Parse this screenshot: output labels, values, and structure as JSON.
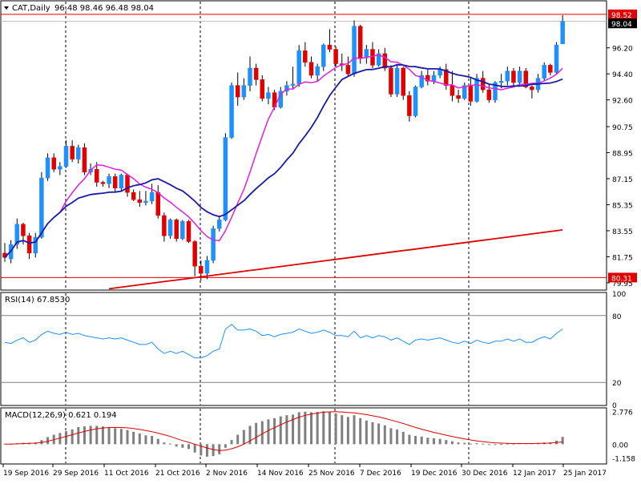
{
  "window": {
    "title": "CAT,Daily",
    "ohlc_text": "96.48 98.46 96.48 98.04"
  },
  "colors": {
    "up": "#1e90ff",
    "down": "#e00000",
    "ma_fast": "#e020e0",
    "ma_mid": "#1a1aa8",
    "ma_slow": "#e00000",
    "level_line": "#e00000",
    "grid": "#000000",
    "rsi_line": "#1e90ff",
    "macd_hist": "#7f7f7f",
    "macd_signal": "#e00000"
  },
  "chart_data": [
    {
      "type": "candlestick",
      "title": "CAT,Daily",
      "ylim": [
        79.5,
        99.4
      ],
      "y_ticks": [
        "98.52",
        "98.04",
        "96.20",
        "94.40",
        "92.60",
        "90.75",
        "88.95",
        "87.15",
        "85.35",
        "83.55",
        "81.75",
        "79.95"
      ],
      "highlight_labels": {
        "current": "98.04",
        "high_level": "98.52",
        "low_level": "80.31"
      },
      "levels": [
        98.52,
        80.31
      ],
      "x_labels": [
        "19 Sep 2016",
        "29 Sep 2016",
        "11 Oct 2016",
        "21 Oct 2016",
        "2 Nov 2016",
        "14 Nov 2016",
        "25 Nov 2016",
        "7 Dec 2016",
        "19 Dec 2016",
        "30 Dec 2016",
        "12 Jan 2017",
        "25 Jan 2017"
      ],
      "candles": [
        [
          82.0,
          82.7,
          81.4,
          81.7
        ],
        [
          81.6,
          82.9,
          81.3,
          82.6
        ],
        [
          82.6,
          84.4,
          82.3,
          84.0
        ],
        [
          84.0,
          84.1,
          82.6,
          83.2
        ],
        [
          83.2,
          83.4,
          81.6,
          82.0
        ],
        [
          82.0,
          83.4,
          81.7,
          83.1
        ],
        [
          83.1,
          87.6,
          83.0,
          87.2
        ],
        [
          87.2,
          88.9,
          87.0,
          88.6
        ],
        [
          88.6,
          88.9,
          87.6,
          87.8
        ],
        [
          87.8,
          88.3,
          87.4,
          88.0
        ],
        [
          88.0,
          89.8,
          87.9,
          89.4
        ],
        [
          89.4,
          89.8,
          88.3,
          88.5
        ],
        [
          88.5,
          89.5,
          88.2,
          89.3
        ],
        [
          89.3,
          89.6,
          87.4,
          87.6
        ],
        [
          87.6,
          88.2,
          87.4,
          87.8
        ],
        [
          87.8,
          88.3,
          86.6,
          86.9
        ],
        [
          86.9,
          87.0,
          86.6,
          86.8
        ],
        [
          86.8,
          87.5,
          86.5,
          87.3
        ],
        [
          87.3,
          87.5,
          86.2,
          86.5
        ],
        [
          86.5,
          87.5,
          86.3,
          87.4
        ],
        [
          87.4,
          87.5,
          85.9,
          86.2
        ],
        [
          86.2,
          86.4,
          85.6,
          85.7
        ],
        [
          85.7,
          86.3,
          85.2,
          85.5
        ],
        [
          85.5,
          86.3,
          85.3,
          85.6
        ],
        [
          85.6,
          86.8,
          85.4,
          86.2
        ],
        [
          86.2,
          86.7,
          84.4,
          84.6
        ],
        [
          84.6,
          84.8,
          82.8,
          83.2
        ],
        [
          83.2,
          84.4,
          83.0,
          84.3
        ],
        [
          84.3,
          84.4,
          82.8,
          83.0
        ],
        [
          83.0,
          84.3,
          82.9,
          84.2
        ],
        [
          84.2,
          84.3,
          82.7,
          82.8
        ],
        [
          82.8,
          82.9,
          80.4,
          81.1
        ],
        [
          81.1,
          81.5,
          80.1,
          80.6
        ],
        [
          80.6,
          81.8,
          80.2,
          81.5
        ],
        [
          81.5,
          83.9,
          81.3,
          83.7
        ],
        [
          83.7,
          84.6,
          83.5,
          84.3
        ],
        [
          84.3,
          90.3,
          84.2,
          90.0
        ],
        [
          90.0,
          93.8,
          89.9,
          93.6
        ],
        [
          93.6,
          94.5,
          92.2,
          92.8
        ],
        [
          92.8,
          94.1,
          92.6,
          93.6
        ],
        [
          93.6,
          95.6,
          93.2,
          94.8
        ],
        [
          94.8,
          95.1,
          93.6,
          94.0
        ],
        [
          94.0,
          94.3,
          92.5,
          92.7
        ],
        [
          92.7,
          93.5,
          92.3,
          93.1
        ],
        [
          93.1,
          93.3,
          91.9,
          92.1
        ],
        [
          92.1,
          93.5,
          92.0,
          93.2
        ],
        [
          93.2,
          93.9,
          92.9,
          93.6
        ],
        [
          93.6,
          94.9,
          93.3,
          93.7
        ],
        [
          93.7,
          96.4,
          93.5,
          96.0
        ],
        [
          96.0,
          96.6,
          94.9,
          95.2
        ],
        [
          95.2,
          95.6,
          94.1,
          94.3
        ],
        [
          94.3,
          95.1,
          93.9,
          94.9
        ],
        [
          94.9,
          96.5,
          94.6,
          96.4
        ],
        [
          96.4,
          97.5,
          95.9,
          96.1
        ],
        [
          96.1,
          96.3,
          94.9,
          95.1
        ],
        [
          95.1,
          95.8,
          94.6,
          95.0
        ],
        [
          95.0,
          95.6,
          94.2,
          94.4
        ],
        [
          94.4,
          98.1,
          94.2,
          97.7
        ],
        [
          97.7,
          97.8,
          95.1,
          95.5
        ],
        [
          95.5,
          96.4,
          95.1,
          96.1
        ],
        [
          96.1,
          96.6,
          94.8,
          95.0
        ],
        [
          95.0,
          96.1,
          94.9,
          95.8
        ],
        [
          95.8,
          96.2,
          94.6,
          94.8
        ],
        [
          94.8,
          95.0,
          92.8,
          93.0
        ],
        [
          93.0,
          95.1,
          92.8,
          94.8
        ],
        [
          94.8,
          94.9,
          92.6,
          92.9
        ],
        [
          92.9,
          93.2,
          91.1,
          91.5
        ],
        [
          91.5,
          93.6,
          91.4,
          93.5
        ],
        [
          93.5,
          94.6,
          93.4,
          94.3
        ],
        [
          94.3,
          94.7,
          93.6,
          93.9
        ],
        [
          93.9,
          94.6,
          93.7,
          94.3
        ],
        [
          94.3,
          94.9,
          94.1,
          94.7
        ],
        [
          94.7,
          95.1,
          93.3,
          93.6
        ],
        [
          93.6,
          94.6,
          92.5,
          92.9
        ],
        [
          92.9,
          93.3,
          92.4,
          92.7
        ],
        [
          92.7,
          93.8,
          92.6,
          93.6
        ],
        [
          93.6,
          94.1,
          92.2,
          92.5
        ],
        [
          92.5,
          94.4,
          92.4,
          94.1
        ],
        [
          94.1,
          94.6,
          93.1,
          93.3
        ],
        [
          93.3,
          93.7,
          92.4,
          92.6
        ],
        [
          92.6,
          93.9,
          92.4,
          93.8
        ],
        [
          93.8,
          94.4,
          93.4,
          93.9
        ],
        [
          93.9,
          94.9,
          93.6,
          94.6
        ],
        [
          94.6,
          94.8,
          93.6,
          93.8
        ],
        [
          93.8,
          94.9,
          93.6,
          94.6
        ],
        [
          94.6,
          94.8,
          93.4,
          93.5
        ],
        [
          93.5,
          93.6,
          92.7,
          93.3
        ],
        [
          93.3,
          94.4,
          93.1,
          94.1
        ],
        [
          94.1,
          95.2,
          93.9,
          95.0
        ],
        [
          95.0,
          95.1,
          94.3,
          94.5
        ],
        [
          94.5,
          96.6,
          94.4,
          96.4
        ],
        [
          96.48,
          98.46,
          96.48,
          98.04
        ]
      ]
    },
    {
      "type": "line",
      "title": "RSI(14) 67.8530",
      "ylim": [
        0,
        100
      ],
      "y_ticks": [
        "100",
        "80",
        "20",
        "0"
      ],
      "levels": [
        80,
        20
      ],
      "values": [
        56,
        55,
        58,
        60,
        56,
        58,
        63,
        66,
        64,
        63,
        65,
        63,
        64,
        62,
        61,
        60,
        59,
        60,
        59,
        60,
        58,
        56,
        54,
        54,
        56,
        50,
        46,
        48,
        46,
        48,
        45,
        42,
        42,
        44,
        48,
        50,
        68,
        72,
        67,
        67,
        68,
        66,
        62,
        63,
        61,
        63,
        64,
        65,
        68,
        66,
        64,
        65,
        67,
        65,
        62,
        62,
        61,
        66,
        60,
        62,
        60,
        62,
        61,
        58,
        60,
        57,
        54,
        58,
        59,
        58,
        59,
        60,
        58,
        56,
        55,
        57,
        55,
        58,
        56,
        55,
        57,
        57,
        59,
        57,
        59,
        56,
        56,
        59,
        61,
        59,
        64,
        68
      ]
    },
    {
      "type": "bar+line",
      "title": "MACD(12,26,9) 0.621 0.194",
      "ylim": [
        -1.6,
        3.0
      ],
      "y_ticks": [
        "2.776",
        "0.00",
        "-1.158"
      ],
      "histogram": [
        0.05,
        0.05,
        0.08,
        0.12,
        0.12,
        0.15,
        0.35,
        0.6,
        0.8,
        0.95,
        1.1,
        1.25,
        1.45,
        1.5,
        1.55,
        1.55,
        1.5,
        1.45,
        1.35,
        1.3,
        1.2,
        1.05,
        0.9,
        0.75,
        0.7,
        0.45,
        0.15,
        0.05,
        -0.2,
        -0.3,
        -0.4,
        -0.7,
        -0.95,
        -1.05,
        -1.0,
        -0.85,
        -0.3,
        0.35,
        0.8,
        1.2,
        1.55,
        1.8,
        1.95,
        2.1,
        2.2,
        2.35,
        2.45,
        2.5,
        2.7,
        2.75,
        2.7,
        2.72,
        2.78,
        2.72,
        2.6,
        2.45,
        2.3,
        2.45,
        2.2,
        2.0,
        1.85,
        1.75,
        1.6,
        1.35,
        1.25,
        1.05,
        0.8,
        0.7,
        0.65,
        0.55,
        0.5,
        0.45,
        0.35,
        0.25,
        0.15,
        0.12,
        0.05,
        0.08,
        0.05,
        0.0,
        0.0,
        0.02,
        0.05,
        0.05,
        0.1,
        0.08,
        0.08,
        0.1,
        0.15,
        0.15,
        0.3,
        0.621
      ],
      "signal": [
        0.0,
        0.01,
        0.03,
        0.05,
        0.07,
        0.09,
        0.15,
        0.25,
        0.38,
        0.52,
        0.66,
        0.8,
        0.95,
        1.08,
        1.2,
        1.3,
        1.37,
        1.41,
        1.42,
        1.41,
        1.38,
        1.33,
        1.25,
        1.16,
        1.06,
        0.94,
        0.8,
        0.65,
        0.48,
        0.31,
        0.16,
        0.0,
        -0.16,
        -0.32,
        -0.45,
        -0.53,
        -0.5,
        -0.38,
        -0.22,
        0.0,
        0.28,
        0.58,
        0.88,
        1.15,
        1.4,
        1.65,
        1.88,
        2.08,
        2.28,
        2.44,
        2.55,
        2.63,
        2.7,
        2.73,
        2.74,
        2.72,
        2.68,
        2.64,
        2.58,
        2.5,
        2.4,
        2.3,
        2.18,
        2.04,
        1.9,
        1.75,
        1.58,
        1.42,
        1.27,
        1.13,
        1.0,
        0.88,
        0.76,
        0.65,
        0.55,
        0.45,
        0.36,
        0.28,
        0.22,
        0.16,
        0.12,
        0.09,
        0.07,
        0.06,
        0.06,
        0.06,
        0.06,
        0.07,
        0.08,
        0.1,
        0.14,
        0.194
      ]
    }
  ]
}
